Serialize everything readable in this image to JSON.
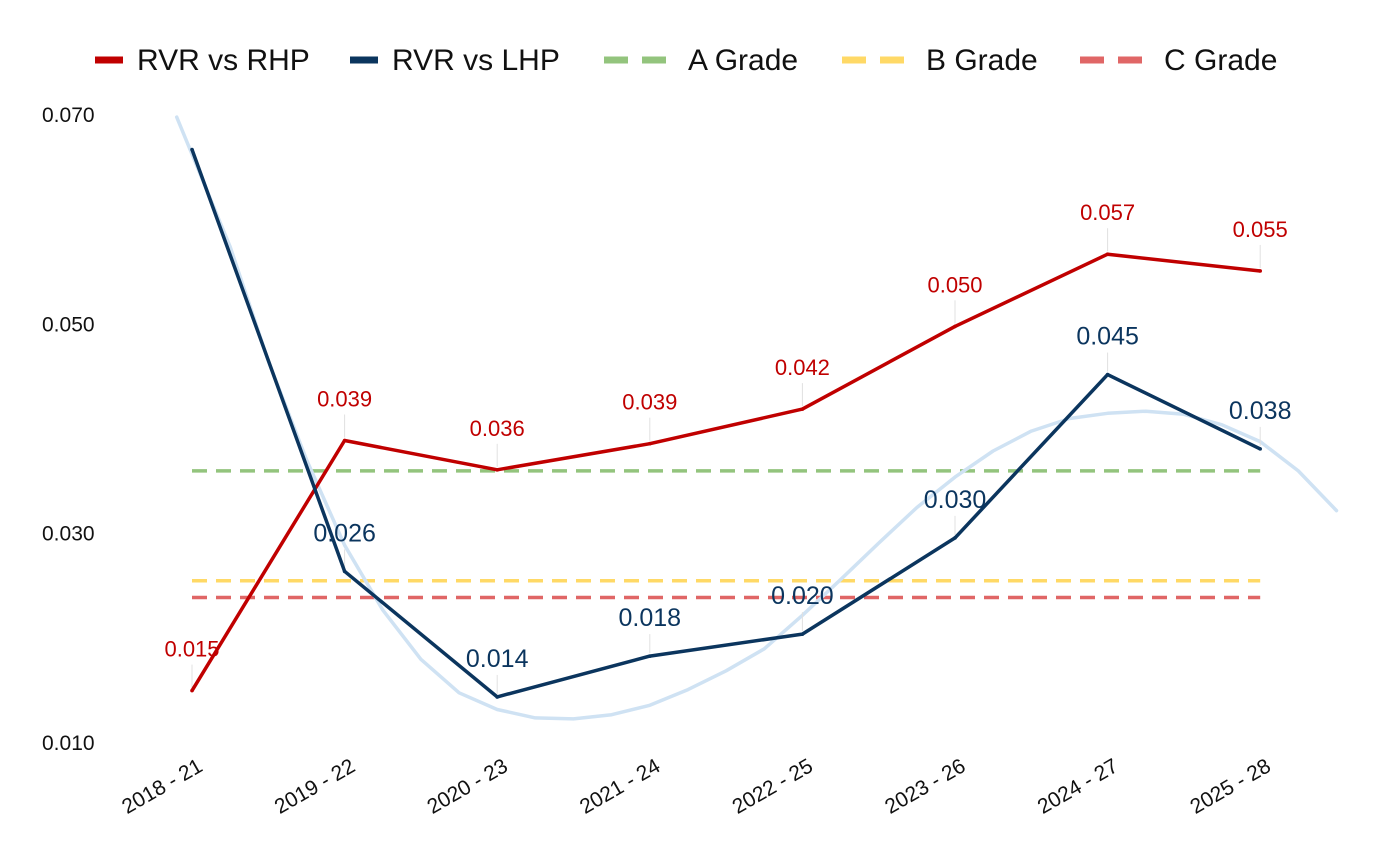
{
  "chart_data": {
    "type": "line",
    "title": "",
    "xlabel": "",
    "ylabel": "",
    "categories": [
      "2018 - 21",
      "2019 - 22",
      "2020 - 23",
      "2021 - 24",
      "2022 - 25",
      "2023 - 26",
      "2024 - 27",
      "2025 - 28"
    ],
    "ylim": [
      0.01,
      0.07
    ],
    "yticks": [
      0.01,
      0.03,
      0.05,
      0.07
    ],
    "ytick_labels": [
      "0.010",
      "0.030",
      "0.050",
      "0.070"
    ],
    "grid": false,
    "legend_position": "top",
    "series": [
      {
        "name": "RVR vs RHP",
        "color": "#c00000",
        "style": "solid",
        "values": [
          0.015,
          0.0389,
          0.0361,
          0.0386,
          0.0419,
          0.0498,
          0.0567,
          0.0551
        ],
        "labels": [
          "0.015",
          "0.039",
          "0.036",
          "0.039",
          "0.042",
          "0.050",
          "0.057",
          "0.055"
        ]
      },
      {
        "name": "RVR vs LHP",
        "color": "#0b355e",
        "style": "solid",
        "values": [
          0.0667,
          0.0264,
          0.0144,
          0.0183,
          0.0204,
          0.0296,
          0.0452,
          0.0381
        ],
        "labels": [
          "",
          "0.026",
          "0.014",
          "0.018",
          "0.020",
          "0.030",
          "0.045",
          "0.038"
        ]
      }
    ],
    "reference_lines": [
      {
        "name": "A Grade",
        "color": "#93c47d",
        "style": "dashed",
        "value": 0.036
      },
      {
        "name": "B Grade",
        "color": "#ffd966",
        "style": "dashed",
        "value": 0.0255
      },
      {
        "name": "C Grade",
        "color": "#e06666",
        "style": "dashed",
        "value": 0.0239
      }
    ],
    "trendline": {
      "color": "#cfe2f3",
      "style": "solid",
      "x": [
        -0.1,
        0.25,
        0.5,
        0.75,
        1.0,
        1.25,
        1.5,
        1.75,
        2.0,
        2.25,
        2.5,
        2.75,
        3.0,
        3.25,
        3.5,
        3.75,
        4.0,
        4.25,
        4.5,
        4.75,
        5.0,
        5.25,
        5.5,
        5.75,
        6.0,
        6.25,
        6.5,
        6.75,
        7.0,
        7.25,
        7.5
      ],
      "values": [
        0.0698,
        0.0574,
        0.0465,
        0.0371,
        0.0289,
        0.0227,
        0.018,
        0.0148,
        0.0132,
        0.0124,
        0.0123,
        0.0127,
        0.0136,
        0.0151,
        0.0169,
        0.019,
        0.0222,
        0.0256,
        0.0291,
        0.0325,
        0.0354,
        0.0379,
        0.0398,
        0.041,
        0.0415,
        0.0417,
        0.0414,
        0.0404,
        0.0388,
        0.036,
        0.0322
      ]
    }
  }
}
